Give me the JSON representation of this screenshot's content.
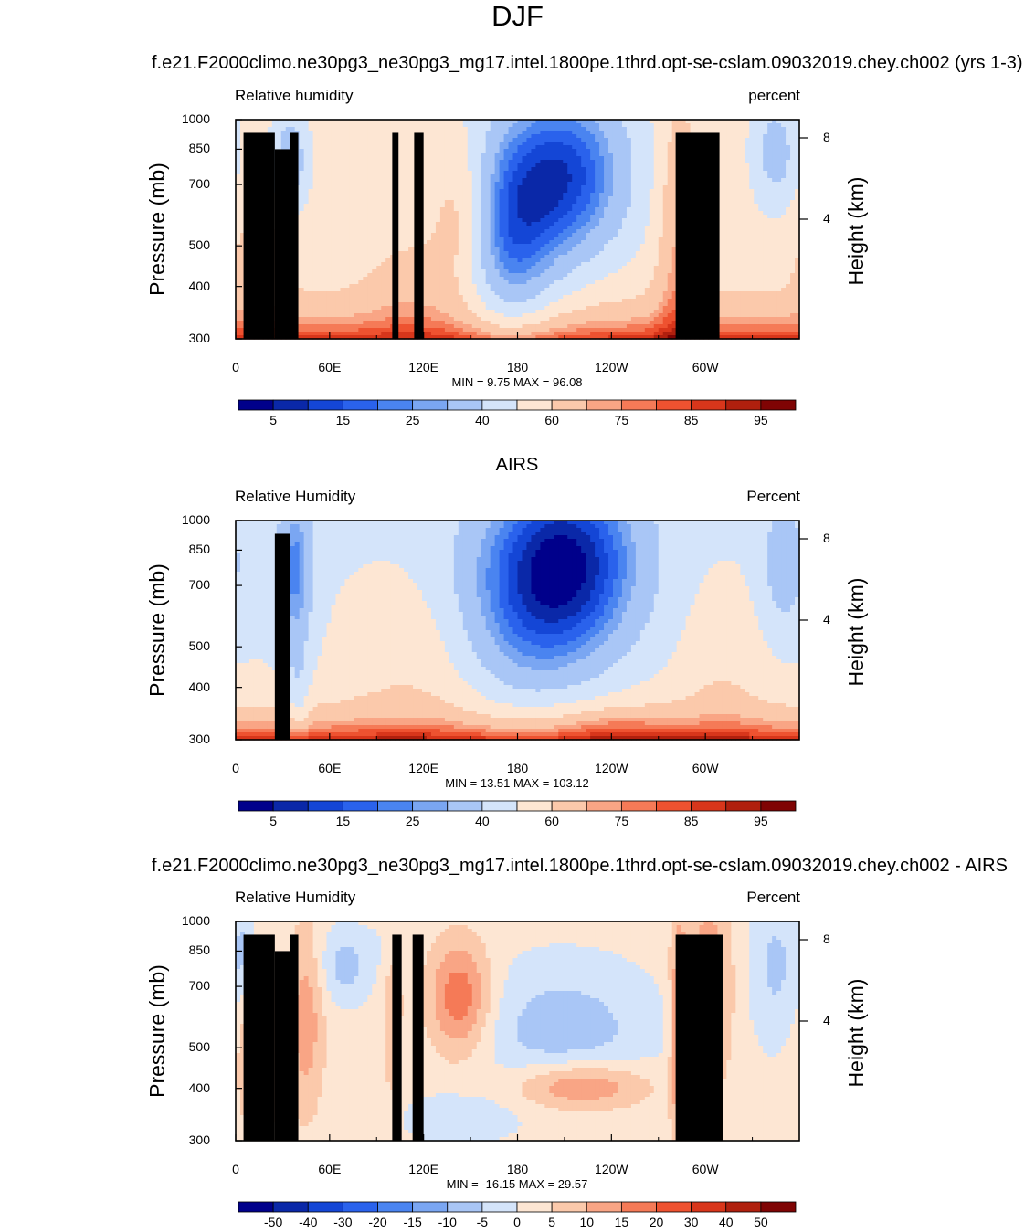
{
  "figure": {
    "title": "DJF"
  },
  "panels": [
    {
      "header": "f.e21.F2000climo.ne30pg3_ne30pg3_mg17.intel.1800pe.1thrd.opt-se-cslam.09032019.chey.ch002 (yrs 1-3)",
      "left_label": "Relative humidity",
      "right_label": "percent",
      "ylabel": "Pressure (mb)",
      "y2label": "Height (km)",
      "stats": "MIN =   9.75  MAX =  96.08",
      "colorbar": "rh"
    },
    {
      "header": "AIRS",
      "left_label": "Relative Humidity",
      "right_label": "Percent",
      "ylabel": "Pressure (mb)",
      "y2label": "Height (km)",
      "stats": "MIN =  13.51  MAX = 103.12",
      "colorbar": "rh"
    },
    {
      "header": "f.e21.F2000climo.ne30pg3_ne30pg3_mg17.intel.1800pe.1thrd.opt-se-cslam.09032019.chey.ch002 - AIRS",
      "left_label": "Relative Humidity",
      "right_label": "Percent",
      "ylabel": "Pressure (mb)",
      "y2label": "Height (km)",
      "stats": "MIN = -16.15  MAX = 29.57",
      "colorbar": "diff"
    }
  ],
  "axes": {
    "x_ticks": [
      "0",
      "60E",
      "120E",
      "180",
      "120W",
      "60W"
    ],
    "y_ticks": [
      "300",
      "400",
      "500",
      "700",
      "850",
      "1000"
    ],
    "y2_ticks": [
      "8",
      "4"
    ]
  },
  "colorbars": {
    "rh": {
      "labels": [
        "5",
        "15",
        "25",
        "40",
        "60",
        "75",
        "85",
        "95"
      ],
      "colors": [
        "#00008b",
        "#0a28a8",
        "#1446d6",
        "#2a62ec",
        "#4a84f0",
        "#7aa6f2",
        "#a9c6f6",
        "#d4e4fa",
        "#fde6d3",
        "#fbc9ab",
        "#f9a585",
        "#f57a57",
        "#ee5230",
        "#d8361b",
        "#b0200e",
        "#7f0404"
      ]
    },
    "diff": {
      "labels": [
        "-50",
        "-40",
        "-30",
        "-20",
        "-15",
        "-10",
        "-5",
        "0",
        "5",
        "10",
        "15",
        "20",
        "30",
        "40",
        "50"
      ],
      "colors": [
        "#00008b",
        "#0a28a8",
        "#1446d6",
        "#2a62ec",
        "#4a84f0",
        "#7aa6f2",
        "#a9c6f6",
        "#d4e4fa",
        "#fde6d3",
        "#fbc9ab",
        "#f9a585",
        "#f57a57",
        "#ee5230",
        "#d8361b",
        "#b0200e",
        "#7f0404"
      ]
    }
  },
  "chart_data": [
    {
      "type": "heatmap",
      "title": "f.e21.F2000climo.ne30pg3_ne30pg3_mg17.intel.1800pe.1thrd.opt-se-cslam.09032019.chey.ch002 (yrs 1-3)",
      "xlabel": "",
      "ylabel": "Pressure (mb)",
      "y2label": "Height (km)",
      "x_range": [
        0,
        360
      ],
      "y_range": [
        1000,
        300
      ],
      "min": 9.75,
      "max": 96.08,
      "units": "percent",
      "colorbar_levels": [
        5,
        15,
        25,
        40,
        60,
        75,
        85,
        95
      ]
    },
    {
      "type": "heatmap",
      "title": "AIRS",
      "xlabel": "",
      "ylabel": "Pressure (mb)",
      "y2label": "Height (km)",
      "x_range": [
        0,
        360
      ],
      "y_range": [
        1000,
        300
      ],
      "min": 13.51,
      "max": 103.12,
      "units": "Percent",
      "colorbar_levels": [
        5,
        15,
        25,
        40,
        60,
        75,
        85,
        95
      ]
    },
    {
      "type": "heatmap",
      "title": "f.e21.F2000climo.ne30pg3_ne30pg3_mg17.intel.1800pe.1thrd.opt-se-cslam.09032019.chey.ch002 - AIRS",
      "xlabel": "",
      "ylabel": "Pressure (mb)",
      "y2label": "Height (km)",
      "x_range": [
        0,
        360
      ],
      "y_range": [
        1000,
        300
      ],
      "min": -16.15,
      "max": 29.57,
      "units": "Percent",
      "colorbar_levels": [
        -50,
        -40,
        -30,
        -20,
        -15,
        -10,
        -5,
        0,
        5,
        10,
        15,
        20,
        30,
        40,
        50
      ]
    }
  ]
}
